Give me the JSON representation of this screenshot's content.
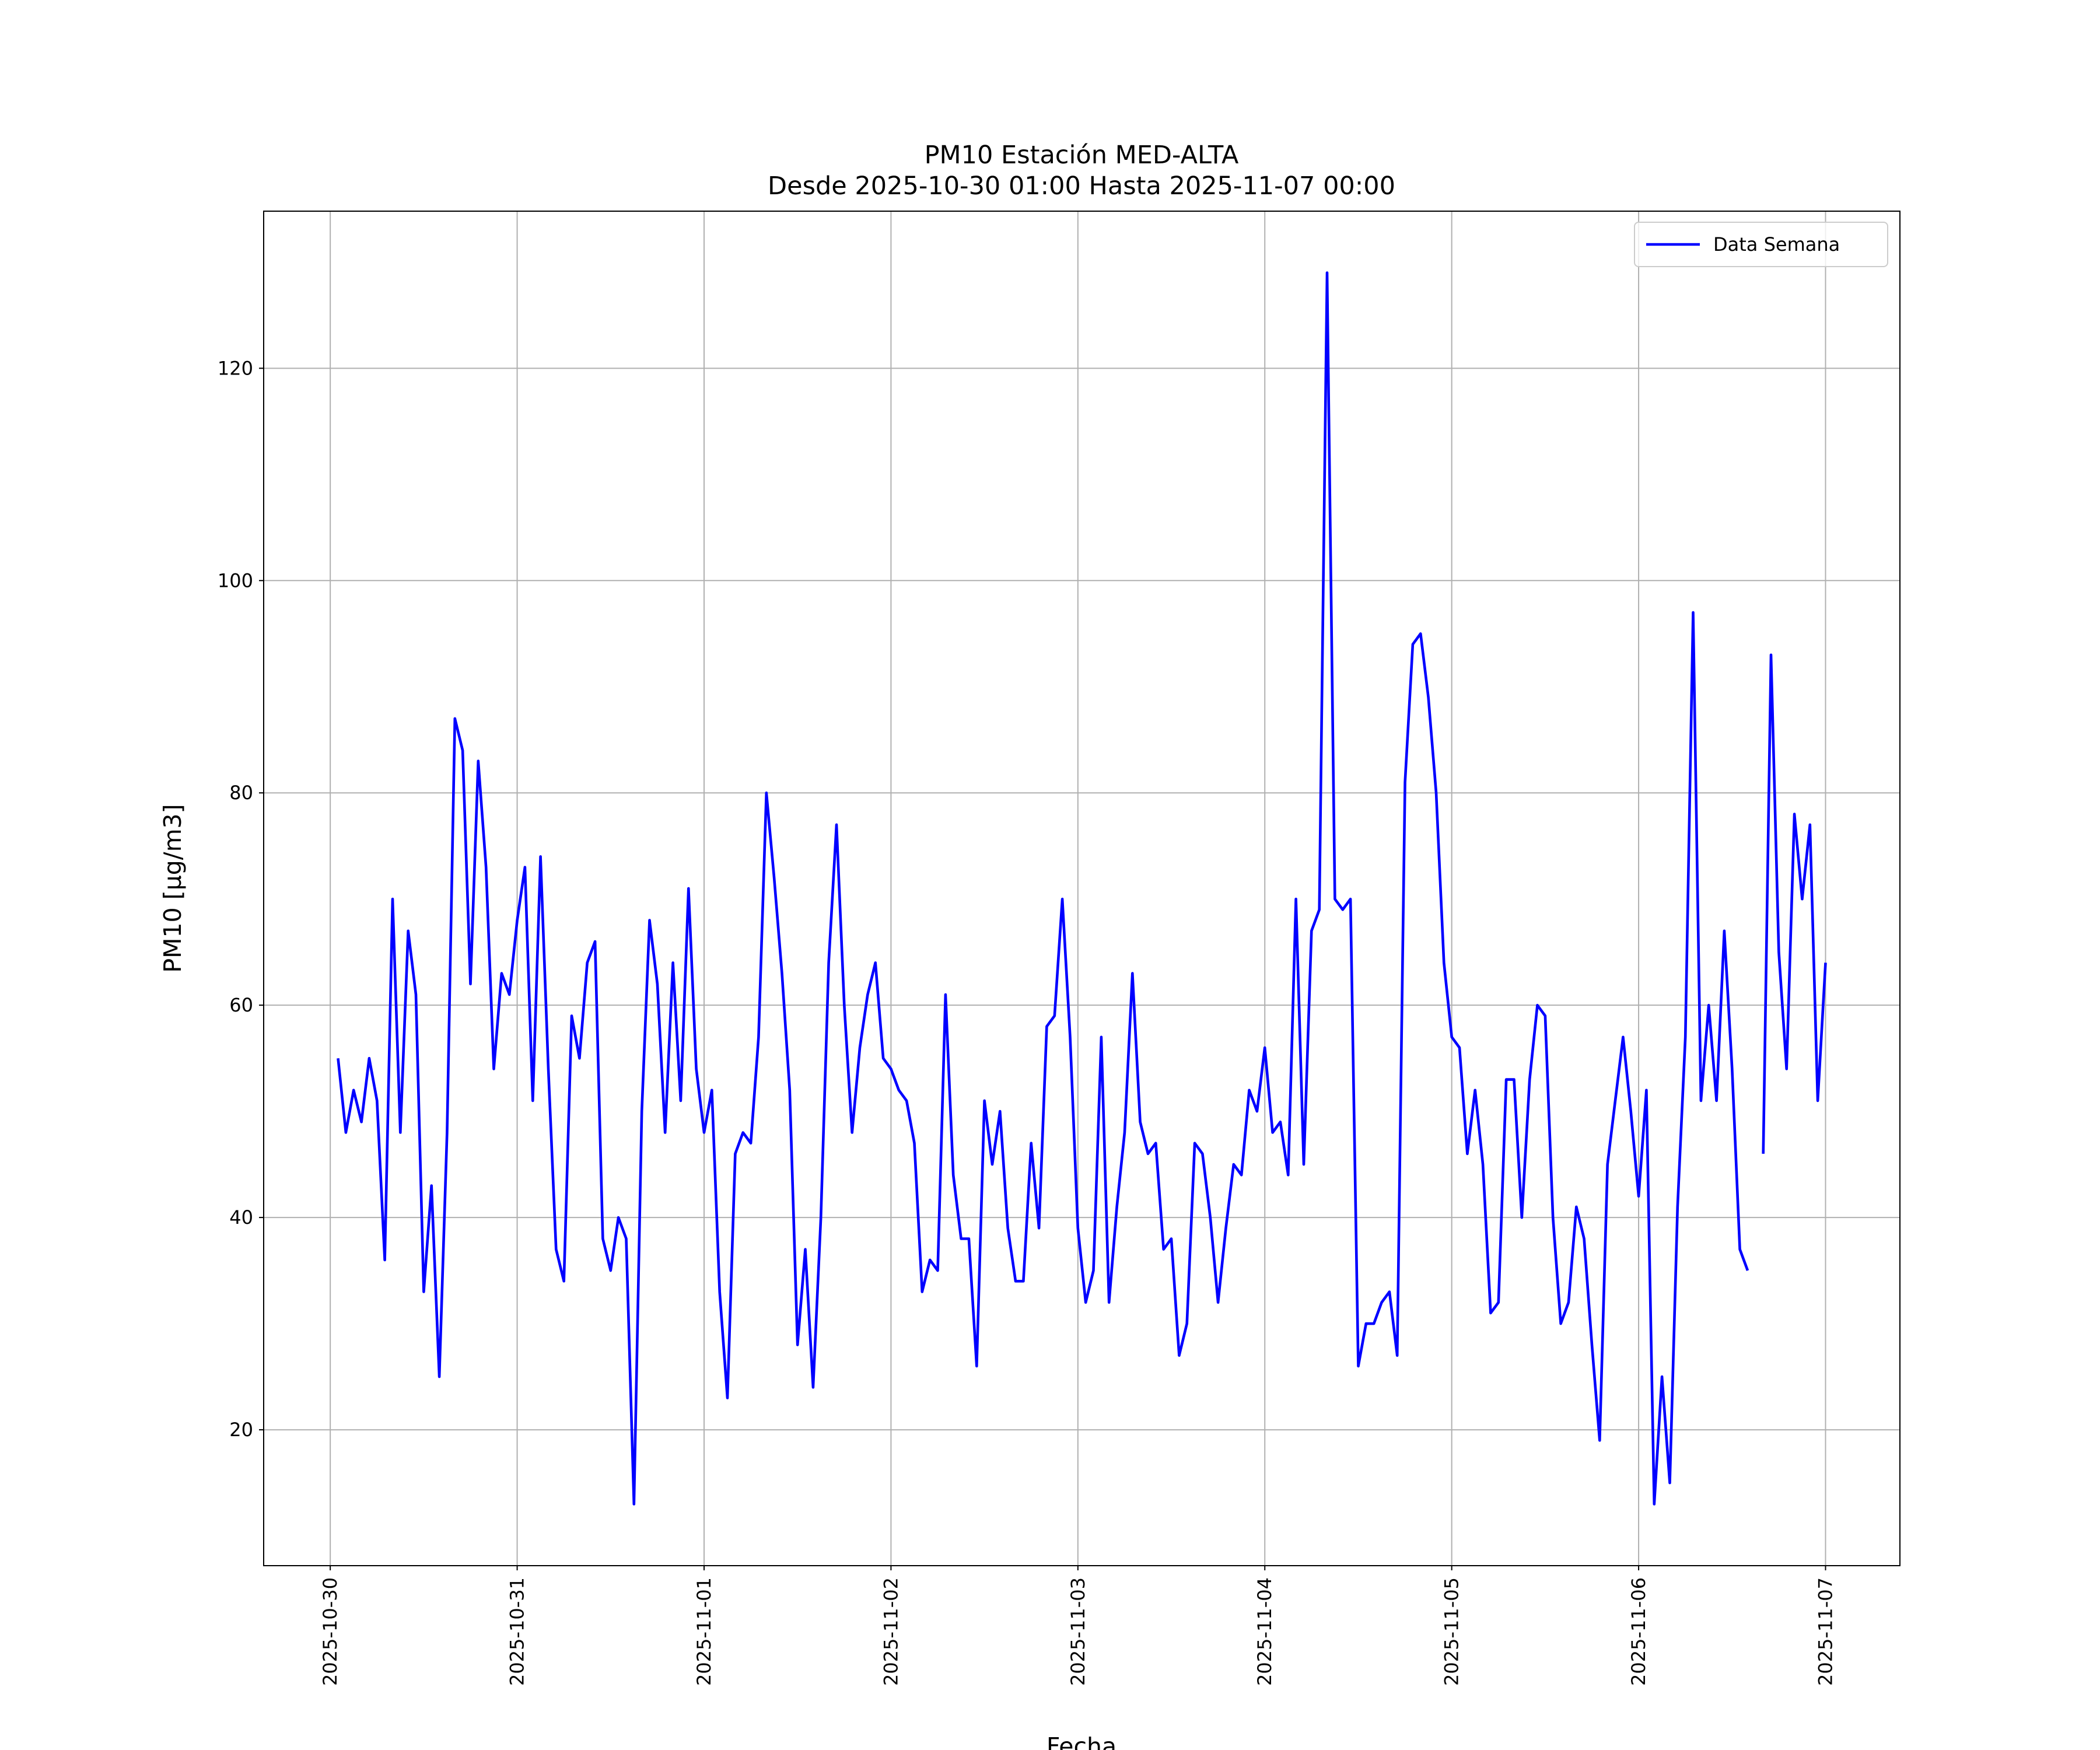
{
  "chart_data": {
    "type": "line",
    "title": "PM10 Estación MED-ALTA",
    "subtitle": "Desde 2025-10-30 01:00 Hasta 2025-11-07 00:00",
    "xlabel": "Fecha",
    "ylabel": "PM10 [μg/m3]",
    "x_start": "2025-10-30 01:00",
    "x_step": "1 hour",
    "x_ticks": [
      "2025-10-30",
      "2025-10-31",
      "2025-11-01",
      "2025-11-02",
      "2025-11-03",
      "2025-11-04",
      "2025-11-05",
      "2025-11-06",
      "2025-11-07"
    ],
    "y_ticks": [
      20,
      40,
      60,
      80,
      100,
      120
    ],
    "ylim": [
      7.2,
      134.8
    ],
    "xlim": [
      "2025-10-29 15:27",
      "2025-11-07 09:33"
    ],
    "grid": true,
    "legend_position": "top-right",
    "series": [
      {
        "name": "Data Semana",
        "color": "#0000ff",
        "values": [
          55,
          48,
          52,
          49,
          55,
          51,
          36,
          70,
          48,
          67,
          61,
          33,
          43,
          25,
          48,
          87,
          84,
          62,
          83,
          73,
          54,
          63,
          61,
          68,
          73,
          51,
          74,
          54,
          37,
          34,
          59,
          55,
          64,
          66,
          38,
          35,
          40,
          38,
          13,
          50,
          68,
          62,
          48,
          64,
          51,
          71,
          54,
          48,
          52,
          33,
          23,
          46,
          48,
          47,
          57,
          80,
          72,
          63,
          52,
          28,
          37,
          24,
          40,
          64,
          77,
          60,
          48,
          56,
          61,
          64,
          55,
          54,
          52,
          51,
          47,
          33,
          36,
          35,
          61,
          44,
          38,
          38,
          26,
          51,
          45,
          50,
          39,
          34,
          34,
          47,
          39,
          58,
          59,
          70,
          57,
          39,
          32,
          35,
          57,
          32,
          41,
          48,
          63,
          49,
          46,
          47,
          37,
          38,
          27,
          30,
          47,
          46,
          40,
          32,
          39,
          45,
          44,
          52,
          50,
          56,
          48,
          49,
          44,
          70,
          45,
          67,
          69,
          129,
          70,
          69,
          70,
          26,
          30,
          30,
          32,
          33,
          27,
          81,
          94,
          95,
          89,
          80,
          64,
          57,
          56,
          46,
          52,
          45,
          31,
          32,
          53,
          53,
          40,
          53,
          60,
          59,
          40,
          30,
          32,
          41,
          38,
          28,
          19,
          45,
          51,
          57,
          50,
          42,
          52,
          13,
          25,
          15,
          41,
          57,
          97,
          51,
          60,
          51,
          67,
          54,
          37,
          35,
          null,
          46,
          93,
          65,
          54,
          78,
          70,
          77,
          51,
          64
        ]
      }
    ]
  }
}
